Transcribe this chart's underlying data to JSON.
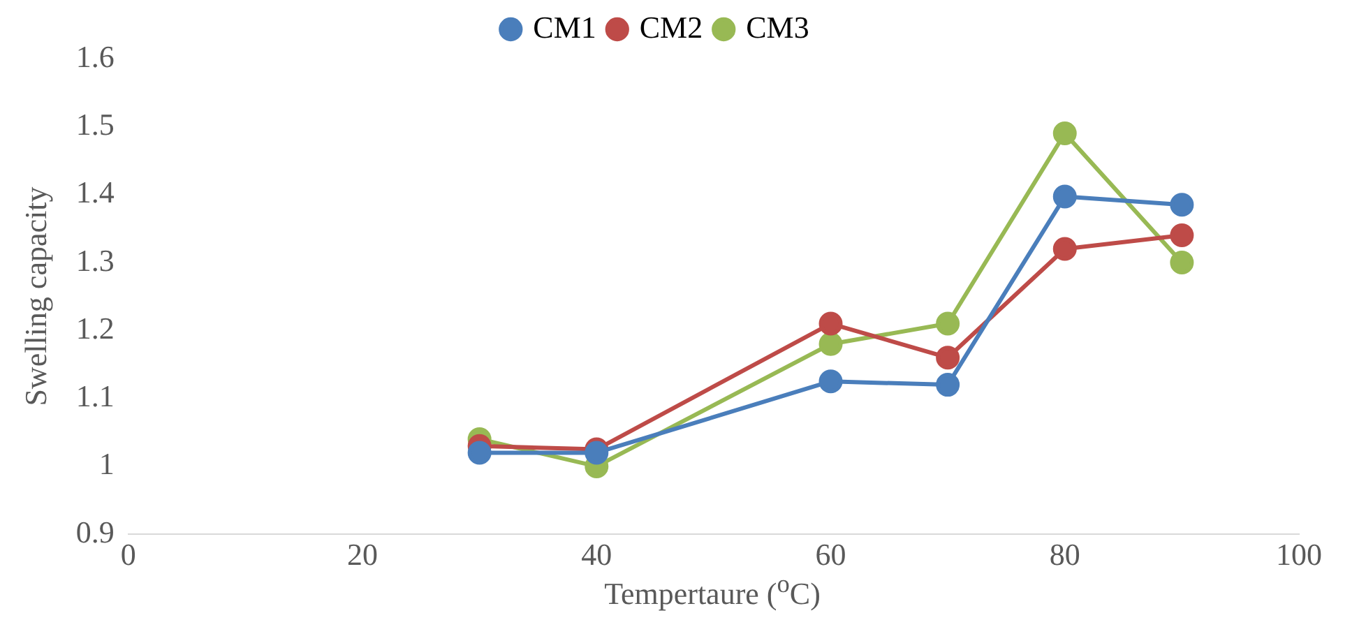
{
  "chart_data": {
    "type": "line",
    "xlabel": "Tempertaure ($^{o}$C)",
    "ylabel": "Swelling capacity",
    "x": [
      30,
      40,
      60,
      70,
      80,
      90
    ],
    "series": [
      {
        "name": "CM1",
        "color": "#4a7ebb",
        "values": [
          1.02,
          1.02,
          1.125,
          1.12,
          1.397,
          1.385
        ]
      },
      {
        "name": "CM2",
        "color": "#be4b48",
        "values": [
          1.03,
          1.025,
          1.21,
          1.16,
          1.32,
          1.34
        ]
      },
      {
        "name": "CM3",
        "color": "#98b954",
        "values": [
          1.04,
          1.0,
          1.18,
          1.21,
          1.49,
          1.3
        ]
      }
    ],
    "xlim": [
      0,
      100
    ],
    "xticks": [
      0,
      20,
      40,
      60,
      80,
      100
    ],
    "ylim": [
      0.9,
      1.6
    ],
    "yticks": [
      0.9,
      1,
      1.1,
      1.2,
      1.3,
      1.4,
      1.5,
      1.6
    ],
    "grid": false,
    "legend": "top",
    "marker": "circle",
    "line_style": "solid"
  }
}
